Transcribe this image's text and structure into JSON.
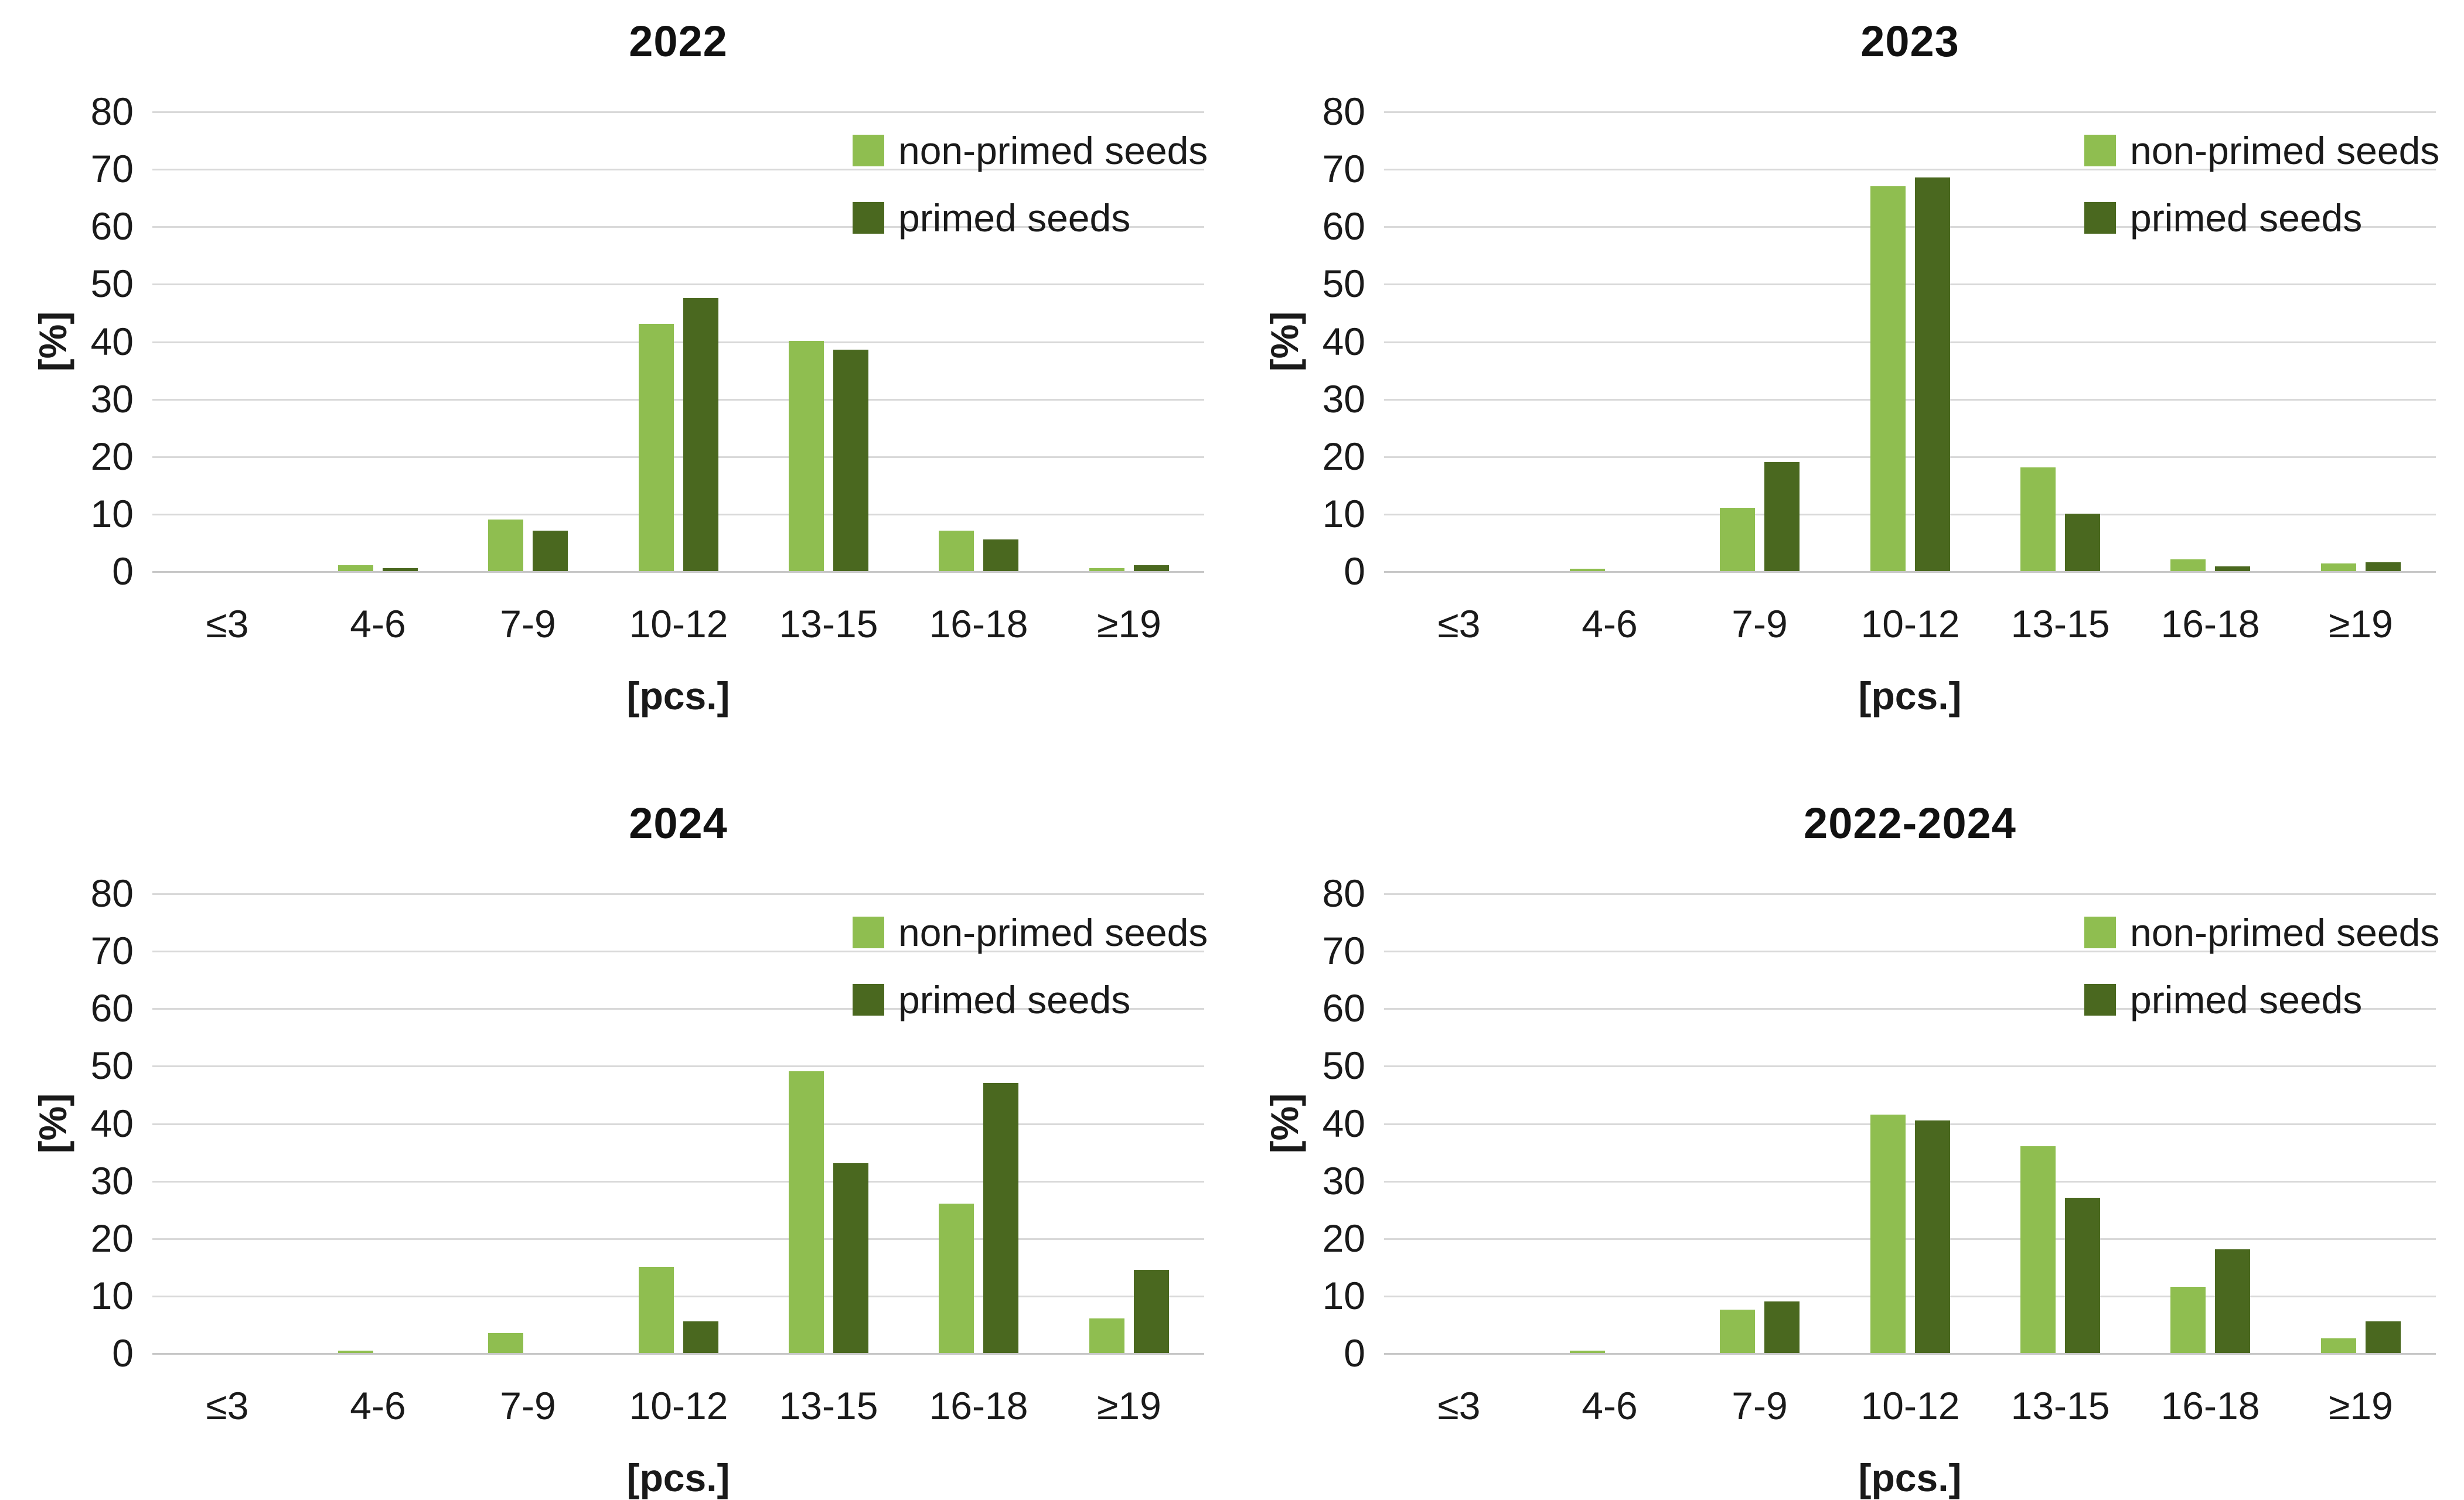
{
  "figure": {
    "background": "#ffffff",
    "panel_titles": [
      "2022",
      "2023",
      "2024",
      "2022-2024"
    ]
  },
  "palette": {
    "non_primed_green": "#8FBE50",
    "primed_green": "#4A681F",
    "gridline_gray": "#D9D9D9",
    "text_black": "#111111"
  },
  "chart_data": [
    {
      "type": "bar",
      "title": "2022",
      "categories": [
        "≤3",
        "4-6",
        "7-9",
        "10-12",
        "13-15",
        "16-18",
        "≥19"
      ],
      "series": [
        {
          "name": "non-primed seeds",
          "color": "#8FBE50",
          "values": [
            0,
            1,
            9,
            43,
            40,
            7,
            0.5
          ]
        },
        {
          "name": "primed seeds",
          "color": "#4A681F",
          "values": [
            0,
            0.5,
            7,
            47.5,
            38.5,
            5.5,
            1
          ]
        }
      ],
      "xlabel": "[pcs.]",
      "ylabel": "[%]",
      "ylim": [
        0,
        80
      ],
      "yticks": [
        0,
        10,
        20,
        30,
        40,
        50,
        60,
        70,
        80
      ],
      "ytick_labels": [
        "0",
        "10",
        "20",
        "30",
        "40",
        "50",
        "60",
        "70",
        "80"
      ],
      "grid": true,
      "legend_position": "top-right"
    },
    {
      "type": "bar",
      "title": "2023",
      "categories": [
        "≤3",
        "4-6",
        "7-9",
        "10-12",
        "13-15",
        "16-18",
        "≥19"
      ],
      "series": [
        {
          "name": "non-primed seeds",
          "color": "#8FBE50",
          "values": [
            0,
            0.4,
            11,
            67,
            18,
            2,
            1.3
          ]
        },
        {
          "name": "primed seeds",
          "color": "#4A681F",
          "values": [
            0,
            0,
            19,
            68.5,
            10,
            0.8,
            1.5
          ]
        }
      ],
      "xlabel": "[pcs.]",
      "ylabel": "[%]",
      "ylim": [
        0,
        80
      ],
      "yticks": [
        0,
        10,
        20,
        30,
        40,
        50,
        60,
        70,
        80
      ],
      "ytick_labels": [
        "0",
        "10",
        "20",
        "30",
        "40",
        "50",
        "60",
        "70",
        "80"
      ],
      "grid": true,
      "legend_position": "top-right"
    },
    {
      "type": "bar",
      "title": "2024",
      "categories": [
        "≤3",
        "4-6",
        "7-9",
        "10-12",
        "13-15",
        "16-18",
        "≥19"
      ],
      "series": [
        {
          "name": "non-primed seeds",
          "color": "#8FBE50",
          "values": [
            0,
            0.3,
            3.5,
            15,
            49,
            26,
            6
          ]
        },
        {
          "name": "primed seeds",
          "color": "#4A681F",
          "values": [
            0,
            0,
            0,
            5.5,
            33,
            47,
            14.5
          ]
        }
      ],
      "xlabel": "[pcs.]",
      "ylabel": "[%]",
      "ylim": [
        0,
        80
      ],
      "yticks": [
        0,
        10,
        20,
        30,
        40,
        50,
        60,
        70,
        80
      ],
      "ytick_labels": [
        "0",
        "10",
        "20",
        "30",
        "40",
        "50",
        "60",
        "70",
        "80"
      ],
      "grid": true,
      "legend_position": "top-right"
    },
    {
      "type": "bar",
      "title": "2022-2024",
      "categories": [
        "≤3",
        "4-6",
        "7-9",
        "10-12",
        "13-15",
        "16-18",
        "≥19"
      ],
      "series": [
        {
          "name": "non-primed seeds",
          "color": "#8FBE50",
          "values": [
            0,
            0.4,
            7.5,
            41.5,
            36,
            11.5,
            2.5
          ]
        },
        {
          "name": "primed seeds",
          "color": "#4A681F",
          "values": [
            0,
            0,
            9,
            40.5,
            27,
            18,
            5.5
          ]
        }
      ],
      "xlabel": "[pcs.]",
      "ylabel": "[%]",
      "ylim": [
        0,
        80
      ],
      "yticks": [
        0,
        10,
        20,
        30,
        40,
        50,
        60,
        70,
        80
      ],
      "ytick_labels": [
        "0",
        "10",
        "20",
        "30",
        "40",
        "50",
        "60",
        "70",
        "80"
      ],
      "grid": true,
      "legend_position": "top-right"
    }
  ]
}
